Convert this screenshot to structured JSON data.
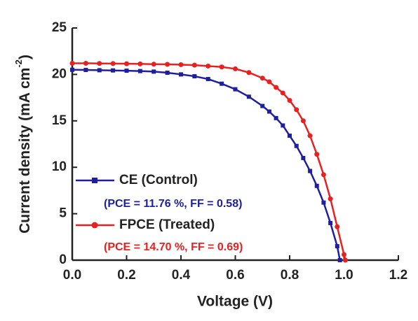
{
  "chart_data": {
    "type": "line",
    "xlabel": "Voltage (V)",
    "ylabel": {
      "text": "Current density (mA cm",
      "sup": "-2",
      "end": ")"
    },
    "xlim": [
      0,
      1.2
    ],
    "ylim": [
      0,
      25
    ],
    "xticks": [
      {
        "value": 0,
        "label": "0.0"
      },
      0.2,
      0.4,
      0.6,
      0.8,
      {
        "value": 1,
        "label": "1.0"
      },
      1.2
    ],
    "yticks": [
      0,
      5,
      10,
      15,
      20,
      25
    ],
    "legend": "lower left",
    "series": [
      {
        "name": "CE (Control)",
        "color": "#1f1f9e",
        "annotation": "(PCE = 11.76 %, FF = 0.58)",
        "x": [
          0,
          0.05,
          0.1,
          0.15,
          0.2,
          0.25,
          0.3,
          0.35,
          0.4,
          0.45,
          0.5,
          0.55,
          0.6,
          0.65,
          0.7,
          0.725,
          0.75,
          0.775,
          0.8,
          0.825,
          0.85,
          0.875,
          0.9,
          0.925,
          0.95,
          0.975,
          0.985
        ],
        "values": [
          20.5,
          20.48,
          20.45,
          20.43,
          20.4,
          20.36,
          20.3,
          20.18,
          20.0,
          19.8,
          19.5,
          19.0,
          18.4,
          17.6,
          16.6,
          16.0,
          15.3,
          14.5,
          13.4,
          12.3,
          11.0,
          9.6,
          8.0,
          6.2,
          4.0,
          1.5,
          0
        ]
      },
      {
        "name": "FPCE (Treated)",
        "color": "#e82020",
        "annotation": "(PCE = 14.70 %, FF = 0.69)",
        "x": [
          0,
          0.05,
          0.1,
          0.15,
          0.2,
          0.25,
          0.3,
          0.35,
          0.4,
          0.45,
          0.5,
          0.55,
          0.6,
          0.65,
          0.7,
          0.725,
          0.75,
          0.775,
          0.8,
          0.825,
          0.85,
          0.875,
          0.9,
          0.925,
          0.95,
          0.975,
          1.0,
          1.005
        ],
        "values": [
          21.2,
          21.2,
          21.18,
          21.17,
          21.15,
          21.13,
          21.1,
          21.08,
          21.05,
          21.0,
          20.9,
          20.8,
          20.6,
          20.2,
          19.6,
          19.2,
          18.6,
          18.0,
          17.2,
          16.2,
          15.0,
          13.4,
          11.4,
          9.2,
          6.6,
          3.6,
          0.6,
          0
        ]
      }
    ]
  }
}
